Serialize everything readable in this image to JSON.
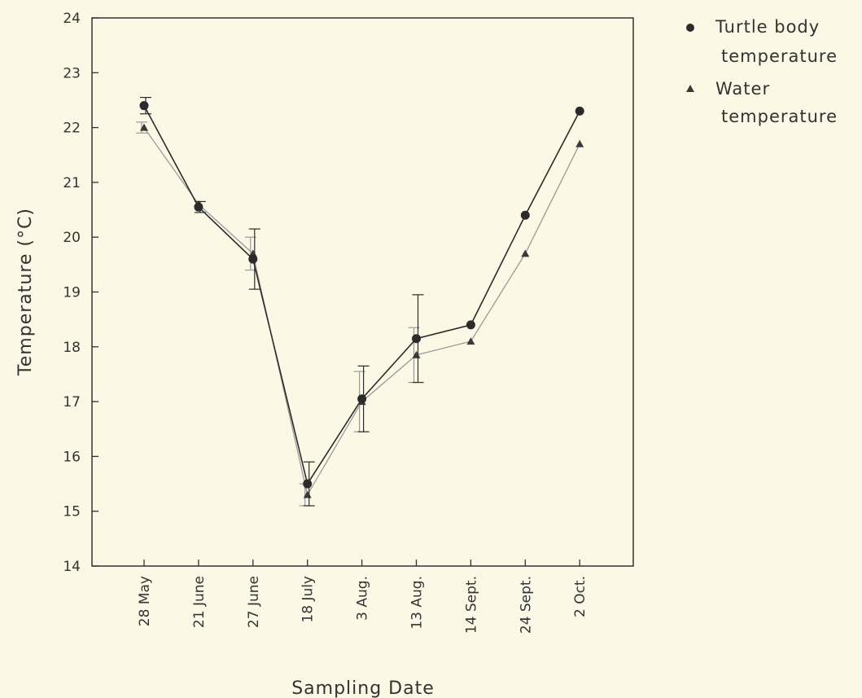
{
  "chart_data": {
    "type": "line",
    "xlabel": "Sampling Date",
    "ylabel": "Temperature (°C)",
    "ylim": [
      14,
      24
    ],
    "yticks": [
      14,
      15,
      16,
      17,
      18,
      19,
      20,
      21,
      22,
      23,
      24
    ],
    "categories": [
      "28 May",
      "21 June",
      "27 June",
      "18 July",
      "3 Aug.",
      "13 Aug.",
      "14 Sept.",
      "24 Sept.",
      "2 Oct."
    ],
    "legend_position": "top-right, outside plot",
    "series": [
      {
        "name": "Turtle body temperature",
        "legend_lines": [
          "Turtle body",
          "temperature"
        ],
        "marker": "circle",
        "color": "#2b2b2b",
        "values": [
          22.4,
          20.55,
          19.6,
          15.5,
          17.05,
          18.15,
          18.4,
          20.4,
          22.3
        ],
        "error": [
          0.15,
          0.1,
          0.55,
          0.4,
          0.6,
          0.8,
          null,
          null,
          null
        ]
      },
      {
        "name": "Water temperature",
        "legend_lines": [
          "Water",
          "temperature"
        ],
        "marker": "triangle",
        "color": "#9a9a9a",
        "values": [
          22.0,
          20.6,
          19.7,
          15.3,
          17.0,
          17.85,
          18.1,
          19.7,
          21.7
        ],
        "error": [
          0.1,
          null,
          0.3,
          0.2,
          0.55,
          0.5,
          null,
          null,
          null
        ]
      }
    ]
  }
}
